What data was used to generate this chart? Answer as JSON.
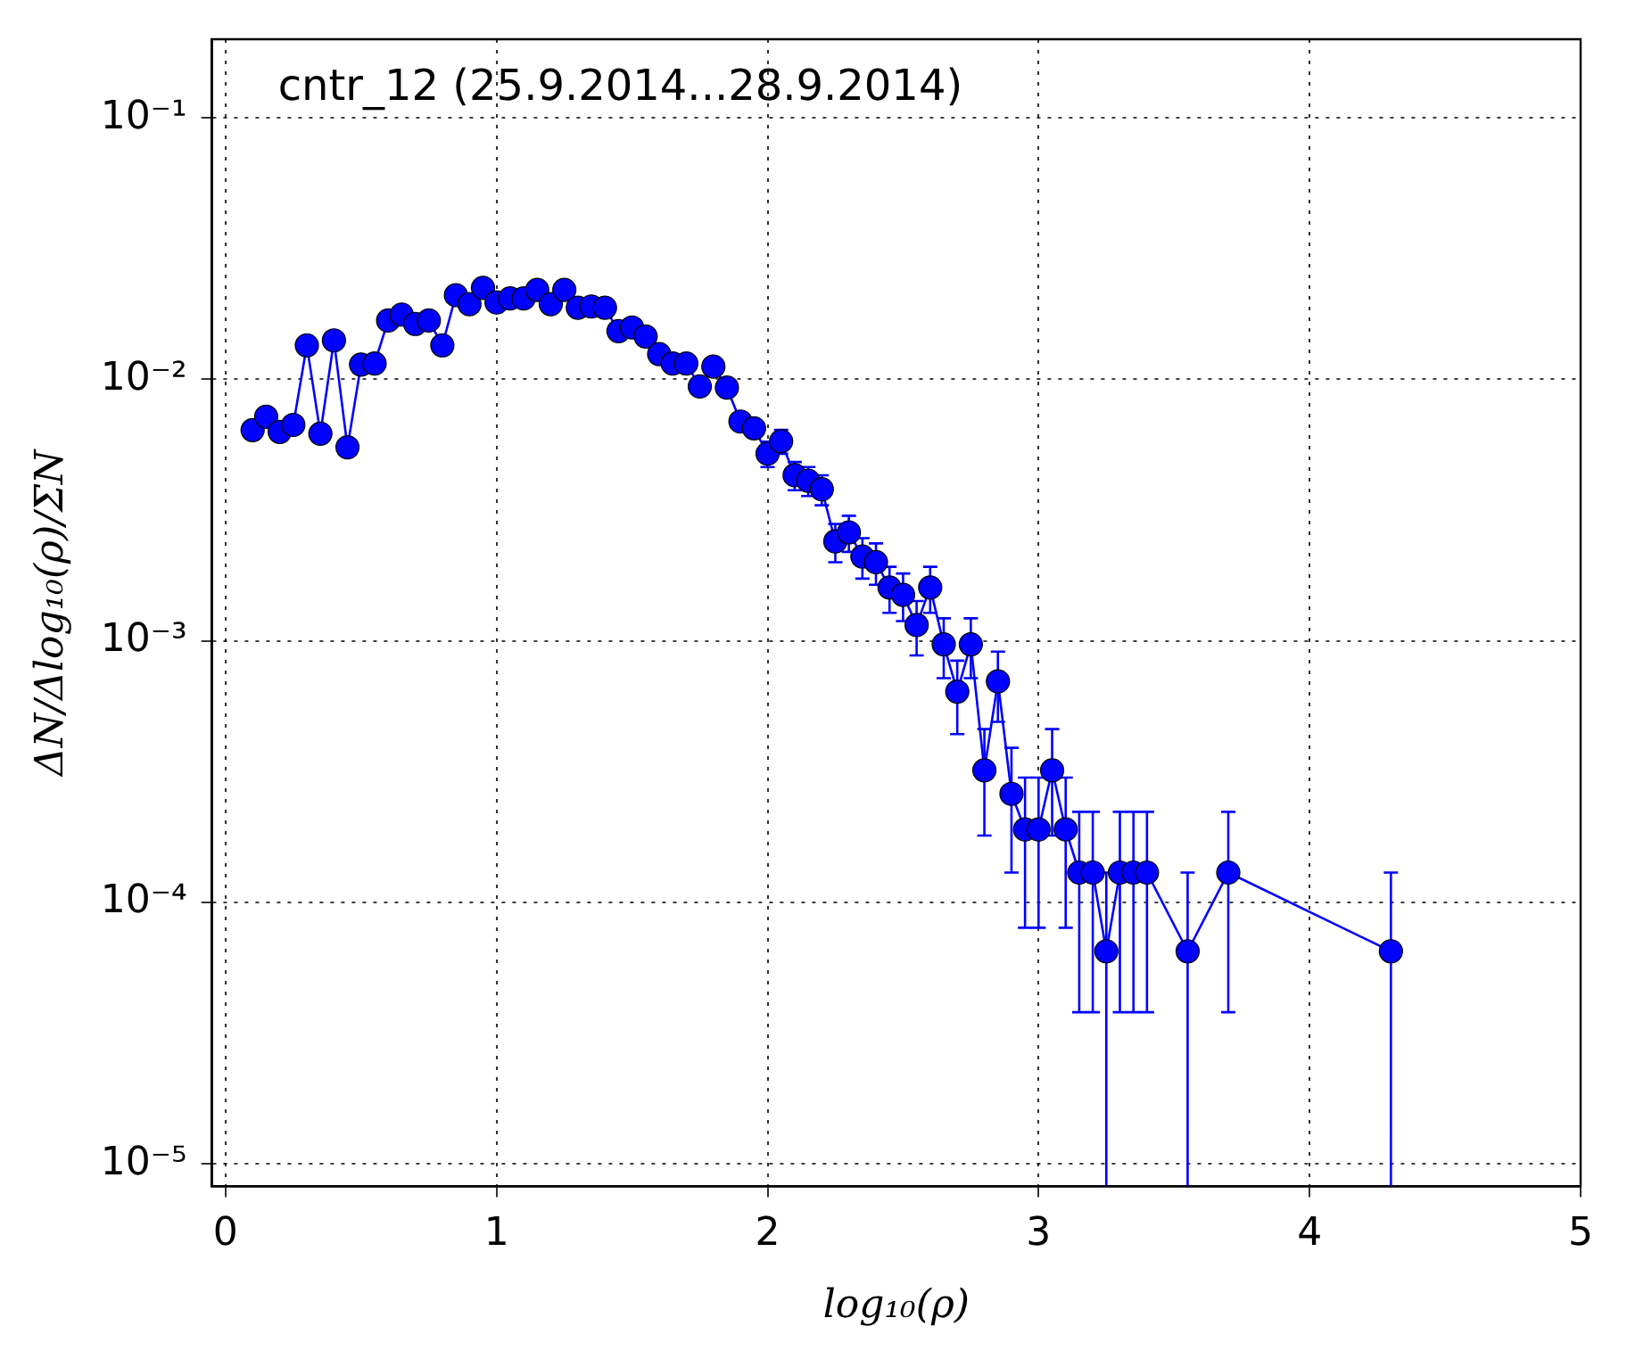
{
  "chart_data": {
    "type": "line",
    "title": "cntr_12 (25.9.2014...28.9.2014)",
    "xlabel": "log₁₀(ρ)",
    "ylabel": "ΔN/Δlog₁₀(ρ)/ΣN",
    "log": "y",
    "grid": true,
    "marker": "circle",
    "line_style": "solid",
    "legend": false,
    "xlim": [
      -0.05,
      5
    ],
    "xticks": [
      0,
      1,
      2,
      3,
      4,
      5
    ],
    "ylim": [
      8.2e-06,
      0.2
    ],
    "yticks": [
      {
        "value": 1e-05,
        "label": "10⁻⁵"
      },
      {
        "value": 0.0001,
        "label": "10⁻⁴"
      },
      {
        "value": 0.001,
        "label": "10⁻³"
      },
      {
        "value": 0.01,
        "label": "10⁻²"
      },
      {
        "value": 0.1,
        "label": "10⁻¹"
      }
    ],
    "x": [
      0.1,
      0.15,
      0.2,
      0.25,
      0.3,
      0.35,
      0.4,
      0.45,
      0.5,
      0.55,
      0.6,
      0.65,
      0.7,
      0.75,
      0.8,
      0.85,
      0.9,
      0.95,
      1.0,
      1.05,
      1.1,
      1.15,
      1.2,
      1.25,
      1.3,
      1.35,
      1.4,
      1.45,
      1.5,
      1.55,
      1.6,
      1.65,
      1.7,
      1.75,
      1.8,
      1.85,
      1.9,
      1.95,
      2.0,
      2.05,
      2.1,
      2.15,
      2.2,
      2.25,
      2.3,
      2.35,
      2.4,
      2.45,
      2.5,
      2.55,
      2.6,
      2.65,
      2.7,
      2.75,
      2.8,
      2.85,
      2.9,
      2.95,
      3.0,
      3.05,
      3.1,
      3.15,
      3.2,
      3.25,
      3.3,
      3.35,
      3.4,
      3.55,
      3.7,
      4.3
    ],
    "series": [
      {
        "color": "#0000ff",
        "values": [
          0.0064,
          0.0072,
          0.0063,
          0.0067,
          0.0135,
          0.0062,
          0.0141,
          0.0055,
          0.0114,
          0.0115,
          0.0168,
          0.0177,
          0.0163,
          0.0168,
          0.0135,
          0.021,
          0.0194,
          0.0224,
          0.0197,
          0.0204,
          0.0204,
          0.022,
          0.0194,
          0.022,
          0.0188,
          0.019,
          0.0188,
          0.0153,
          0.0158,
          0.0146,
          0.0125,
          0.0115,
          0.0115,
          0.0094,
          0.0112,
          0.0093,
          0.0069,
          0.0065,
          0.0052,
          0.0058,
          0.0043,
          0.0041,
          0.0038,
          0.0024,
          0.0026,
          0.0021,
          0.002,
          0.0016,
          0.0015,
          0.00115,
          0.0016,
          0.00097,
          0.00064,
          0.00097,
          0.00032,
          0.0007,
          0.00026,
          0.00019,
          0.00019,
          0.00032,
          0.00019,
          0.00013,
          0.00013,
          6.5e-05,
          0.00013,
          0.00013,
          0.00013,
          6.5e-05,
          0.00013,
          6.5e-05
        ],
        "errors": [
          null,
          null,
          null,
          null,
          null,
          null,
          null,
          null,
          null,
          null,
          null,
          null,
          null,
          null,
          null,
          null,
          null,
          null,
          null,
          null,
          null,
          null,
          null,
          null,
          null,
          null,
          null,
          null,
          null,
          null,
          null,
          null,
          null,
          null,
          null,
          null,
          null,
          null,
          0.00058,
          0.00061,
          0.00053,
          0.00052,
          0.0005,
          0.0004,
          0.00041,
          0.00037,
          0.00036,
          0.00032,
          0.00031,
          0.00027,
          0.00032,
          0.00025,
          0.0002,
          0.00025,
          0.00014,
          0.00021,
          0.00013,
          0.00011,
          0.00011,
          0.00014,
          0.00011,
          9.2e-05,
          9.2e-05,
          [
            8.2e-06,
            0.00013
          ],
          9.2e-05,
          9.2e-05,
          9.2e-05,
          [
            8.2e-06,
            0.00013
          ],
          9.2e-05,
          [
            8.2e-06,
            0.00013
          ]
        ]
      }
    ]
  }
}
